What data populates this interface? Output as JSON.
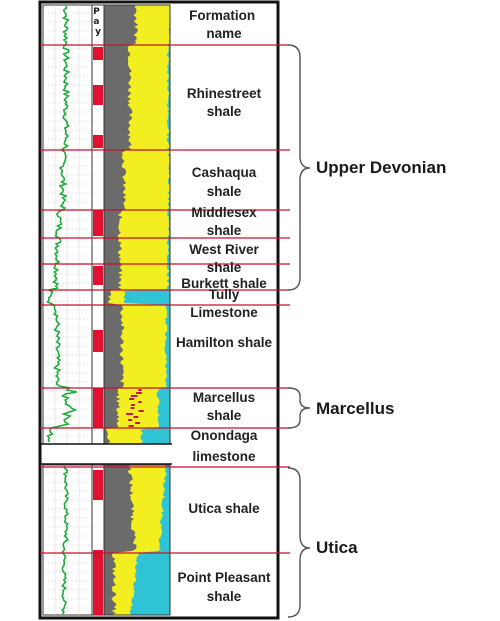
{
  "header": {
    "pay_label": "Pay",
    "column_title": "Formation name"
  },
  "formations": [
    {
      "label": "Rhinestreet shale"
    },
    {
      "label": "Cashaqua shale"
    },
    {
      "label": "Middlesex shale"
    },
    {
      "label": "West River shale"
    },
    {
      "label": "Burkett shale"
    },
    {
      "label": "Tully Limestone"
    },
    {
      "label": "Hamilton shale"
    },
    {
      "label": "Marcellus shale"
    },
    {
      "label": "Onondaga limestone"
    },
    {
      "label": "Utica shale"
    },
    {
      "label": "Point Pleasant shale"
    }
  ],
  "groups": [
    {
      "label": "Upper Devonian"
    },
    {
      "label": "Marcellus"
    },
    {
      "label": "Utica"
    }
  ],
  "colors": {
    "boundary": "#c8102e",
    "pay": "#e0102f",
    "gamma_curve": "#1faa3a",
    "quartz": "#f2ee1f",
    "clay": "#6b6b6b",
    "carbonate": "#2ec4d6",
    "organic": "#c0154a"
  }
}
